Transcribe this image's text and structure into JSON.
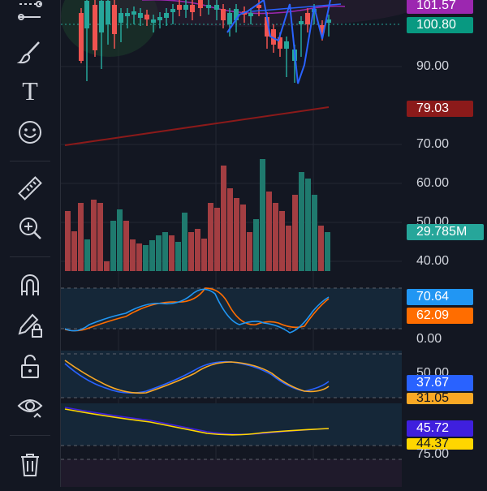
{
  "toolbar": {
    "tools": [
      {
        "icon": "trend-line-icon"
      },
      {
        "icon": "brush-icon"
      },
      {
        "icon": "text-icon"
      },
      {
        "icon": "emoji-icon"
      },
      {
        "icon": "ruler-icon"
      },
      {
        "icon": "zoom-in-icon"
      },
      {
        "icon": "magnet-icon"
      },
      {
        "icon": "lock-drawing-icon"
      },
      {
        "icon": "unlock-icon"
      },
      {
        "icon": "eye-icon"
      },
      {
        "icon": "trash-icon"
      }
    ],
    "text_tool_glyph": "T"
  },
  "price_pane": {
    "badges": {
      "high": "101.57",
      "last": "100.80",
      "ma": "79.03"
    },
    "axis_labels": [
      "90.00",
      "70.00",
      "60.00",
      "50.00",
      "40.00"
    ]
  },
  "volume": {
    "label": "29.785M"
  },
  "stoch_pane": {
    "k": "70.64",
    "d": "62.09",
    "zero": "0.00"
  },
  "rsi_pane": {
    "a": "37.67",
    "b": "31.05",
    "top": "50.00"
  },
  "adx_pane": {
    "a": "45.72",
    "b": "44.37",
    "top": "75.00"
  },
  "colors": {
    "bg": "#131722",
    "up": "#26a69a",
    "down": "#ef5350",
    "blue": "#2962ff",
    "orange": "#ff6d00",
    "purple": "#9c27b0",
    "teal": "#089981",
    "darkred": "#8b1a1a",
    "yellow": "#ffd600",
    "indigo": "#3f1fde"
  }
}
